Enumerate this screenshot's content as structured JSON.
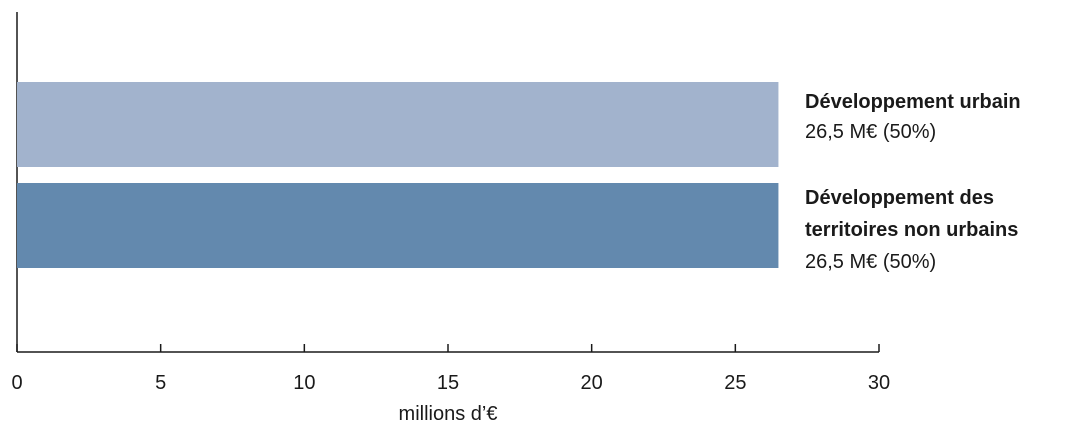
{
  "chart_data": {
    "type": "bar",
    "orientation": "horizontal",
    "categories": [
      "Développement urbain",
      "Développement des territoires non urbains"
    ],
    "category_label_lines": [
      [
        "Développement urbain"
      ],
      [
        "Développement des",
        "territoires non urbains"
      ]
    ],
    "values": [
      26.5,
      26.5
    ],
    "value_labels": [
      "26,5 M€ (50%)",
      "26,5 M€ (50%)"
    ],
    "colors": [
      "#a2b3cd",
      "#6389ae"
    ],
    "xlabel": "millions d’€",
    "ylabel": "",
    "xlim": [
      0,
      30
    ],
    "xticks": [
      0,
      5,
      10,
      15,
      20,
      25,
      30
    ],
    "xtick_labels": [
      "0",
      "5",
      "10",
      "15",
      "20",
      "25",
      "30"
    ],
    "grid": false,
    "legend": "none"
  }
}
